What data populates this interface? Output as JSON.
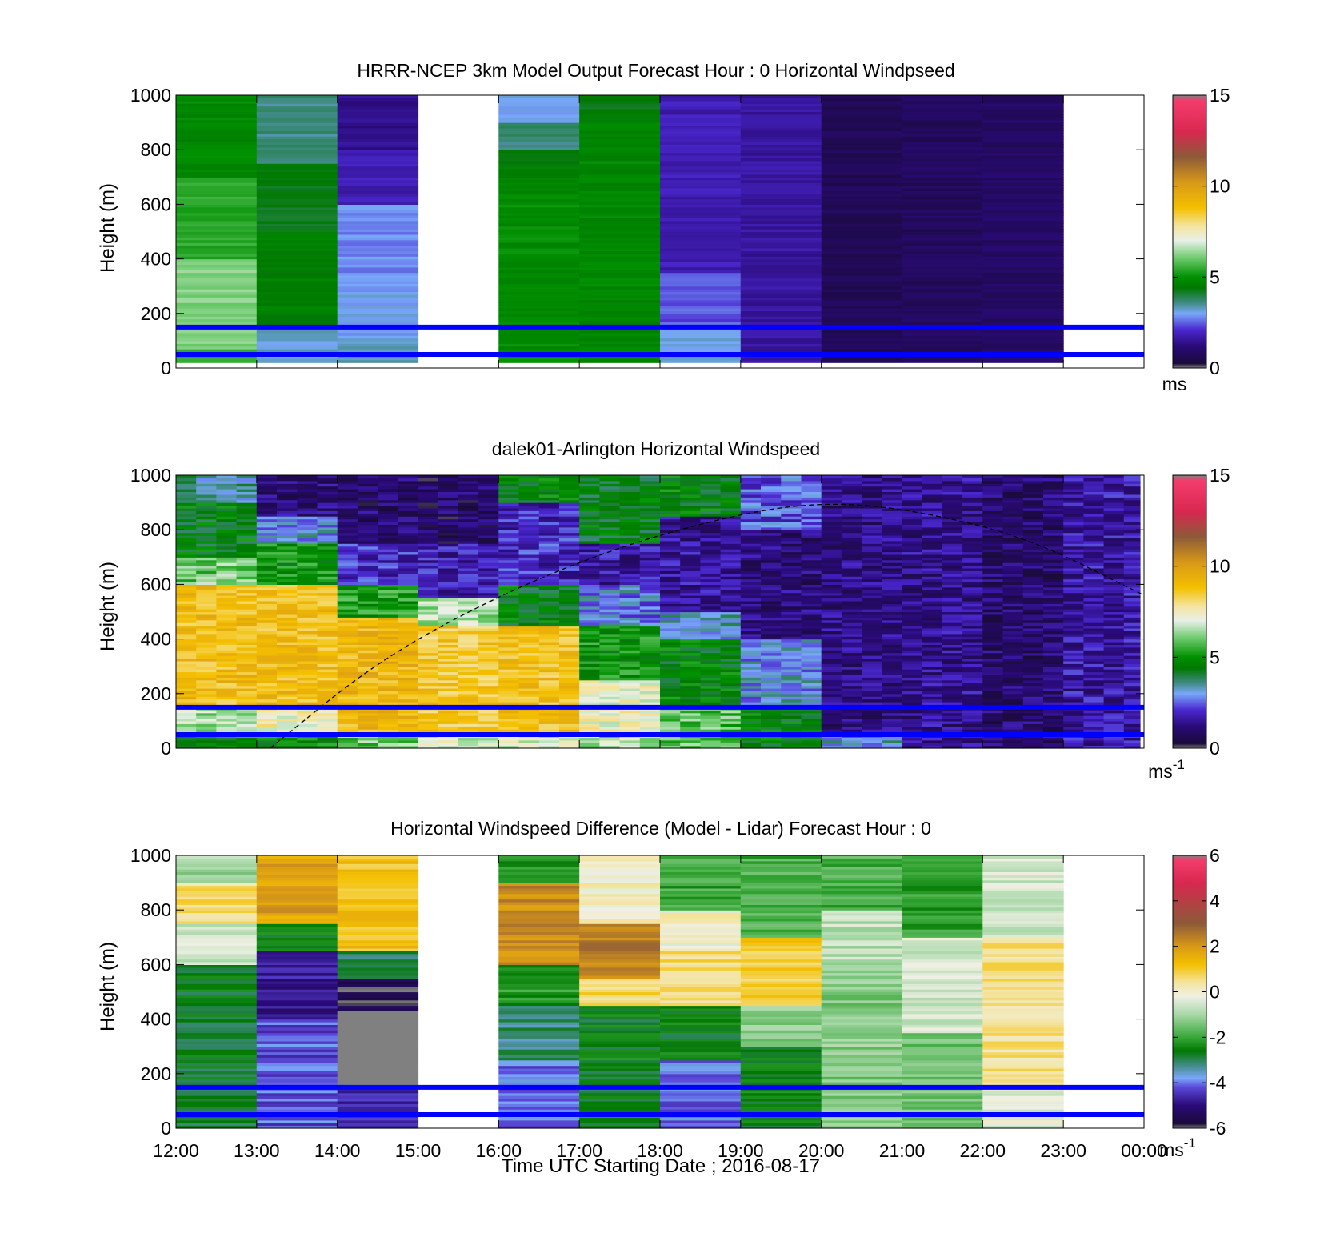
{
  "chart_data": [
    {
      "type": "heatmap",
      "title": "HRRR-NCEP 3km Model Output   Forecast Hour : 0 Horizontal Windpseed",
      "ylabel": "Height (m)",
      "ylim": [
        0,
        1000
      ],
      "yticks": [
        "0",
        "200",
        "400",
        "600",
        "800",
        "1000"
      ],
      "xlim": [
        "12:00",
        "00:00"
      ],
      "colorbar": {
        "range": [
          0,
          15
        ],
        "ticks": [
          "0",
          "5",
          "10",
          "15"
        ],
        "unit": "ms"
      },
      "reference_lines_m": [
        50,
        150
      ],
      "columns": [
        {
          "start": "12:00",
          "segments": [
            {
              "from": 20,
              "to": 70,
              "value": 5.5
            },
            {
              "from": 70,
              "to": 400,
              "value": 6.2
            },
            {
              "from": 400,
              "to": 700,
              "value": 5.4
            },
            {
              "from": 700,
              "to": 1000,
              "value": 4.8
            }
          ]
        },
        {
          "start": "13:00",
          "segments": [
            {
              "from": 20,
              "to": 150,
              "value": 3.2
            },
            {
              "from": 150,
              "to": 500,
              "value": 4.6
            },
            {
              "from": 500,
              "to": 750,
              "value": 4.3
            },
            {
              "from": 750,
              "to": 1000,
              "value": 3.6
            }
          ]
        },
        {
          "start": "14:00",
          "segments": [
            {
              "from": 20,
              "to": 100,
              "value": 3.4
            },
            {
              "from": 100,
              "to": 350,
              "value": 3.0
            },
            {
              "from": 350,
              "to": 600,
              "value": 2.8
            },
            {
              "from": 600,
              "to": 800,
              "value": 1.8
            },
            {
              "from": 800,
              "to": 1000,
              "value": 1.4
            }
          ]
        },
        {
          "start": "15:00",
          "segments": []
        },
        {
          "start": "16:00",
          "segments": [
            {
              "from": 20,
              "to": 700,
              "value": 4.9
            },
            {
              "from": 700,
              "to": 800,
              "value": 4.5
            },
            {
              "from": 800,
              "to": 900,
              "value": 3.7
            },
            {
              "from": 900,
              "to": 1000,
              "value": 3.0
            }
          ]
        },
        {
          "start": "17:00",
          "segments": [
            {
              "from": 20,
              "to": 900,
              "value": 4.8
            },
            {
              "from": 900,
              "to": 1000,
              "value": 4.4
            }
          ]
        },
        {
          "start": "18:00",
          "segments": [
            {
              "from": 20,
              "to": 150,
              "value": 3.1
            },
            {
              "from": 150,
              "to": 350,
              "value": 2.4
            },
            {
              "from": 350,
              "to": 1000,
              "value": 1.8
            }
          ]
        },
        {
          "start": "19:00",
          "segments": [
            {
              "from": 20,
              "to": 1000,
              "value": 1.6
            }
          ]
        },
        {
          "start": "20:00",
          "segments": [
            {
              "from": 20,
              "to": 1000,
              "value": 0.7
            }
          ]
        },
        {
          "start": "21:00",
          "segments": [
            {
              "from": 20,
              "to": 1000,
              "value": 0.8
            }
          ]
        },
        {
          "start": "22:00",
          "segments": [
            {
              "from": 20,
              "to": 1000,
              "value": 0.9
            }
          ]
        },
        {
          "start": "23:00",
          "segments": []
        }
      ]
    },
    {
      "type": "heatmap",
      "title": "dalek01-Arlington  Horizontal Windspeed",
      "ylabel": "Height (m)",
      "ylim": [
        0,
        1000
      ],
      "yticks": [
        "0",
        "200",
        "400",
        "600",
        "800",
        "1000"
      ],
      "xlim": [
        "12:00",
        "00:00"
      ],
      "colorbar": {
        "range": [
          0,
          15
        ],
        "ticks": [
          "0",
          "5",
          "10",
          "15"
        ],
        "unit": "ms",
        "unit_exp": "-1"
      },
      "reference_lines_m": [
        50,
        150
      ],
      "time_step_hours": 0.25,
      "profiles": [
        {
          "from_hour": 12.0,
          "to_hour": 13.0,
          "segments": [
            {
              "from": 0,
              "to": 50,
              "value": 4.8
            },
            {
              "from": 50,
              "to": 150,
              "value": 6.5
            },
            {
              "from": 150,
              "to": 600,
              "value": 8.9
            },
            {
              "from": 600,
              "to": 700,
              "value": 6.0
            },
            {
              "from": 700,
              "to": 900,
              "value": 4.5
            },
            {
              "from": 900,
              "to": 1000,
              "value": 3.5
            }
          ]
        },
        {
          "from_hour": 13.0,
          "to_hour": 14.0,
          "segments": [
            {
              "from": 0,
              "to": 50,
              "value": 4.8
            },
            {
              "from": 50,
              "to": 150,
              "value": 7.4
            },
            {
              "from": 150,
              "to": 600,
              "value": 8.9
            },
            {
              "from": 600,
              "to": 750,
              "value": 5.0
            },
            {
              "from": 750,
              "to": 850,
              "value": 3.0
            },
            {
              "from": 850,
              "to": 1000,
              "value": 1.2
            }
          ]
        },
        {
          "from_hour": 14.0,
          "to_hour": 15.0,
          "segments": [
            {
              "from": 0,
              "to": 50,
              "value": 6.0
            },
            {
              "from": 50,
              "to": 480,
              "value": 9.1
            },
            {
              "from": 480,
              "to": 600,
              "value": 5.2
            },
            {
              "from": 600,
              "to": 750,
              "value": 2.0
            },
            {
              "from": 750,
              "to": 1000,
              "value": 1.0
            }
          ]
        },
        {
          "from_hour": 15.0,
          "to_hour": 16.0,
          "segments": [
            {
              "from": 0,
              "to": 50,
              "value": 7.0
            },
            {
              "from": 50,
              "to": 450,
              "value": 8.6
            },
            {
              "from": 450,
              "to": 550,
              "value": 6.5
            },
            {
              "from": 550,
              "to": 750,
              "value": 1.8
            },
            {
              "from": 750,
              "to": 1000,
              "value": 0.9
            }
          ]
        },
        {
          "from_hour": 16.0,
          "to_hour": 17.0,
          "segments": [
            {
              "from": 0,
              "to": 50,
              "value": 7.0
            },
            {
              "from": 50,
              "to": 450,
              "value": 8.8
            },
            {
              "from": 450,
              "to": 600,
              "value": 4.5
            },
            {
              "from": 600,
              "to": 900,
              "value": 2.0
            },
            {
              "from": 900,
              "to": 1000,
              "value": 4.6
            }
          ]
        },
        {
          "from_hour": 17.0,
          "to_hour": 18.0,
          "segments": [
            {
              "from": 0,
              "to": 50,
              "value": 6.5
            },
            {
              "from": 50,
              "to": 250,
              "value": 7.3
            },
            {
              "from": 250,
              "to": 450,
              "value": 5.0
            },
            {
              "from": 450,
              "to": 600,
              "value": 2.8
            },
            {
              "from": 600,
              "to": 750,
              "value": 1.6
            },
            {
              "from": 750,
              "to": 1000,
              "value": 4.4
            }
          ]
        },
        {
          "from_hour": 18.0,
          "to_hour": 19.0,
          "segments": [
            {
              "from": 0,
              "to": 150,
              "value": 5.8
            },
            {
              "from": 150,
              "to": 400,
              "value": 4.6
            },
            {
              "from": 400,
              "to": 500,
              "value": 3.2
            },
            {
              "from": 500,
              "to": 850,
              "value": 1.5
            },
            {
              "from": 850,
              "to": 1000,
              "value": 4.6
            }
          ]
        },
        {
          "from_hour": 19.0,
          "to_hour": 20.0,
          "segments": [
            {
              "from": 0,
              "to": 150,
              "value": 4.6
            },
            {
              "from": 150,
              "to": 400,
              "value": 3.0
            },
            {
              "from": 400,
              "to": 800,
              "value": 1.2
            },
            {
              "from": 800,
              "to": 1000,
              "value": 2.4
            }
          ]
        },
        {
          "from_hour": 20.0,
          "to_hour": 21.0,
          "segments": [
            {
              "from": 0,
              "to": 50,
              "value": 3.2
            },
            {
              "from": 50,
              "to": 1000,
              "value": 1.3
            }
          ]
        },
        {
          "from_hour": 21.0,
          "to_hour": 22.0,
          "segments": [
            {
              "from": 0,
              "to": 1000,
              "value": 1.4
            }
          ]
        },
        {
          "from_hour": 22.0,
          "to_hour": 23.0,
          "segments": [
            {
              "from": 0,
              "to": 1000,
              "value": 1.0
            }
          ]
        },
        {
          "from_hour": 23.0,
          "to_hour": 23.95,
          "segments": [
            {
              "from": 0,
              "to": 1000,
              "value": 1.6
            }
          ]
        }
      ],
      "overlay_curve": {
        "style": "dashed",
        "points": [
          [
            "13:10",
            0
          ],
          [
            "14:30",
            320
          ],
          [
            "16:00",
            560
          ],
          [
            "17:30",
            740
          ],
          [
            "19:00",
            860
          ],
          [
            "20:00",
            900
          ],
          [
            "21:00",
            880
          ],
          [
            "22:30",
            780
          ],
          [
            "00:00",
            560
          ]
        ]
      }
    },
    {
      "type": "heatmap",
      "title": "Horizontal Windspeed Difference (Model - Lidar) Forecast Hour : 0",
      "ylabel": "Height (m)",
      "xlabel": "Time UTC  Starting Date ; 2016-08-17",
      "ylim": [
        0,
        1000
      ],
      "yticks": [
        "0",
        "200",
        "400",
        "600",
        "800",
        "1000"
      ],
      "xticks": [
        "12:00",
        "13:00",
        "14:00",
        "15:00",
        "16:00",
        "17:00",
        "18:00",
        "19:00",
        "20:00",
        "21:00",
        "22:00",
        "23:00",
        "00:00"
      ],
      "colorbar": {
        "range": [
          -6,
          6
        ],
        "ticks": [
          "-6",
          "-4",
          "-2",
          "0",
          "2",
          "4",
          "6"
        ],
        "unit": "ms",
        "unit_exp": "-1"
      },
      "reference_lines_m": [
        50,
        150
      ],
      "columns": [
        {
          "start": "12:00",
          "segments": [
            {
              "from": 0,
              "to": 600,
              "value": -2.7
            },
            {
              "from": 600,
              "to": 750,
              "value": -0.6
            },
            {
              "from": 750,
              "to": 900,
              "value": 0.6
            },
            {
              "from": 900,
              "to": 1000,
              "value": -1.0
            }
          ]
        },
        {
          "start": "13:00",
          "segments": [
            {
              "from": 0,
              "to": 400,
              "value": -4.2
            },
            {
              "from": 400,
              "to": 650,
              "value": -4.8
            },
            {
              "from": 650,
              "to": 750,
              "value": -2.5
            },
            {
              "from": 750,
              "to": 1000,
              "value": 1.8
            }
          ]
        },
        {
          "start": "14:00",
          "segments": [
            {
              "from": 0,
              "to": 150,
              "value": -4.5
            },
            {
              "from": 150,
              "to": 430,
              "value": null
            },
            {
              "from": 430,
              "to": 550,
              "value": -5.6
            },
            {
              "from": 550,
              "to": 650,
              "value": -3.0
            },
            {
              "from": 650,
              "to": 1000,
              "value": 1.2
            }
          ]
        },
        {
          "start": "15:00",
          "segments": []
        },
        {
          "start": "16:00",
          "segments": [
            {
              "from": 0,
              "to": 250,
              "value": -4.0
            },
            {
              "from": 250,
              "to": 450,
              "value": -3.2
            },
            {
              "from": 450,
              "to": 600,
              "value": -2.2
            },
            {
              "from": 600,
              "to": 900,
              "value": 2.2
            },
            {
              "from": 900,
              "to": 1000,
              "value": -2.4
            }
          ]
        },
        {
          "start": "17:00",
          "segments": [
            {
              "from": 0,
              "to": 150,
              "value": -2.8
            },
            {
              "from": 150,
              "to": 450,
              "value": -2.6
            },
            {
              "from": 450,
              "to": 550,
              "value": 0.8
            },
            {
              "from": 550,
              "to": 750,
              "value": 2.4
            },
            {
              "from": 750,
              "to": 1000,
              "value": 0.0
            }
          ]
        },
        {
          "start": "18:00",
          "segments": [
            {
              "from": 0,
              "to": 250,
              "value": -4.0
            },
            {
              "from": 250,
              "to": 450,
              "value": -2.6
            },
            {
              "from": 450,
              "to": 650,
              "value": 0.6
            },
            {
              "from": 650,
              "to": 800,
              "value": 0.0
            },
            {
              "from": 800,
              "to": 1000,
              "value": -2.0
            }
          ]
        },
        {
          "start": "19:00",
          "segments": [
            {
              "from": 0,
              "to": 300,
              "value": -2.6
            },
            {
              "from": 300,
              "to": 450,
              "value": -1.2
            },
            {
              "from": 450,
              "to": 700,
              "value": 0.9
            },
            {
              "from": 700,
              "to": 1000,
              "value": -1.9
            }
          ]
        },
        {
          "start": "20:00",
          "segments": [
            {
              "from": 0,
              "to": 600,
              "value": -1.3
            },
            {
              "from": 600,
              "to": 800,
              "value": -0.8
            },
            {
              "from": 800,
              "to": 1000,
              "value": -1.9
            }
          ]
        },
        {
          "start": "21:00",
          "segments": [
            {
              "from": 0,
              "to": 350,
              "value": -1.5
            },
            {
              "from": 350,
              "to": 700,
              "value": -0.5
            },
            {
              "from": 700,
              "to": 1000,
              "value": -2.1
            }
          ]
        },
        {
          "start": "22:00",
          "segments": [
            {
              "from": 0,
              "to": 150,
              "value": -0.4
            },
            {
              "from": 150,
              "to": 700,
              "value": 0.5
            },
            {
              "from": 700,
              "to": 1000,
              "value": -0.6
            }
          ]
        },
        {
          "start": "23:00",
          "segments": []
        }
      ]
    }
  ]
}
